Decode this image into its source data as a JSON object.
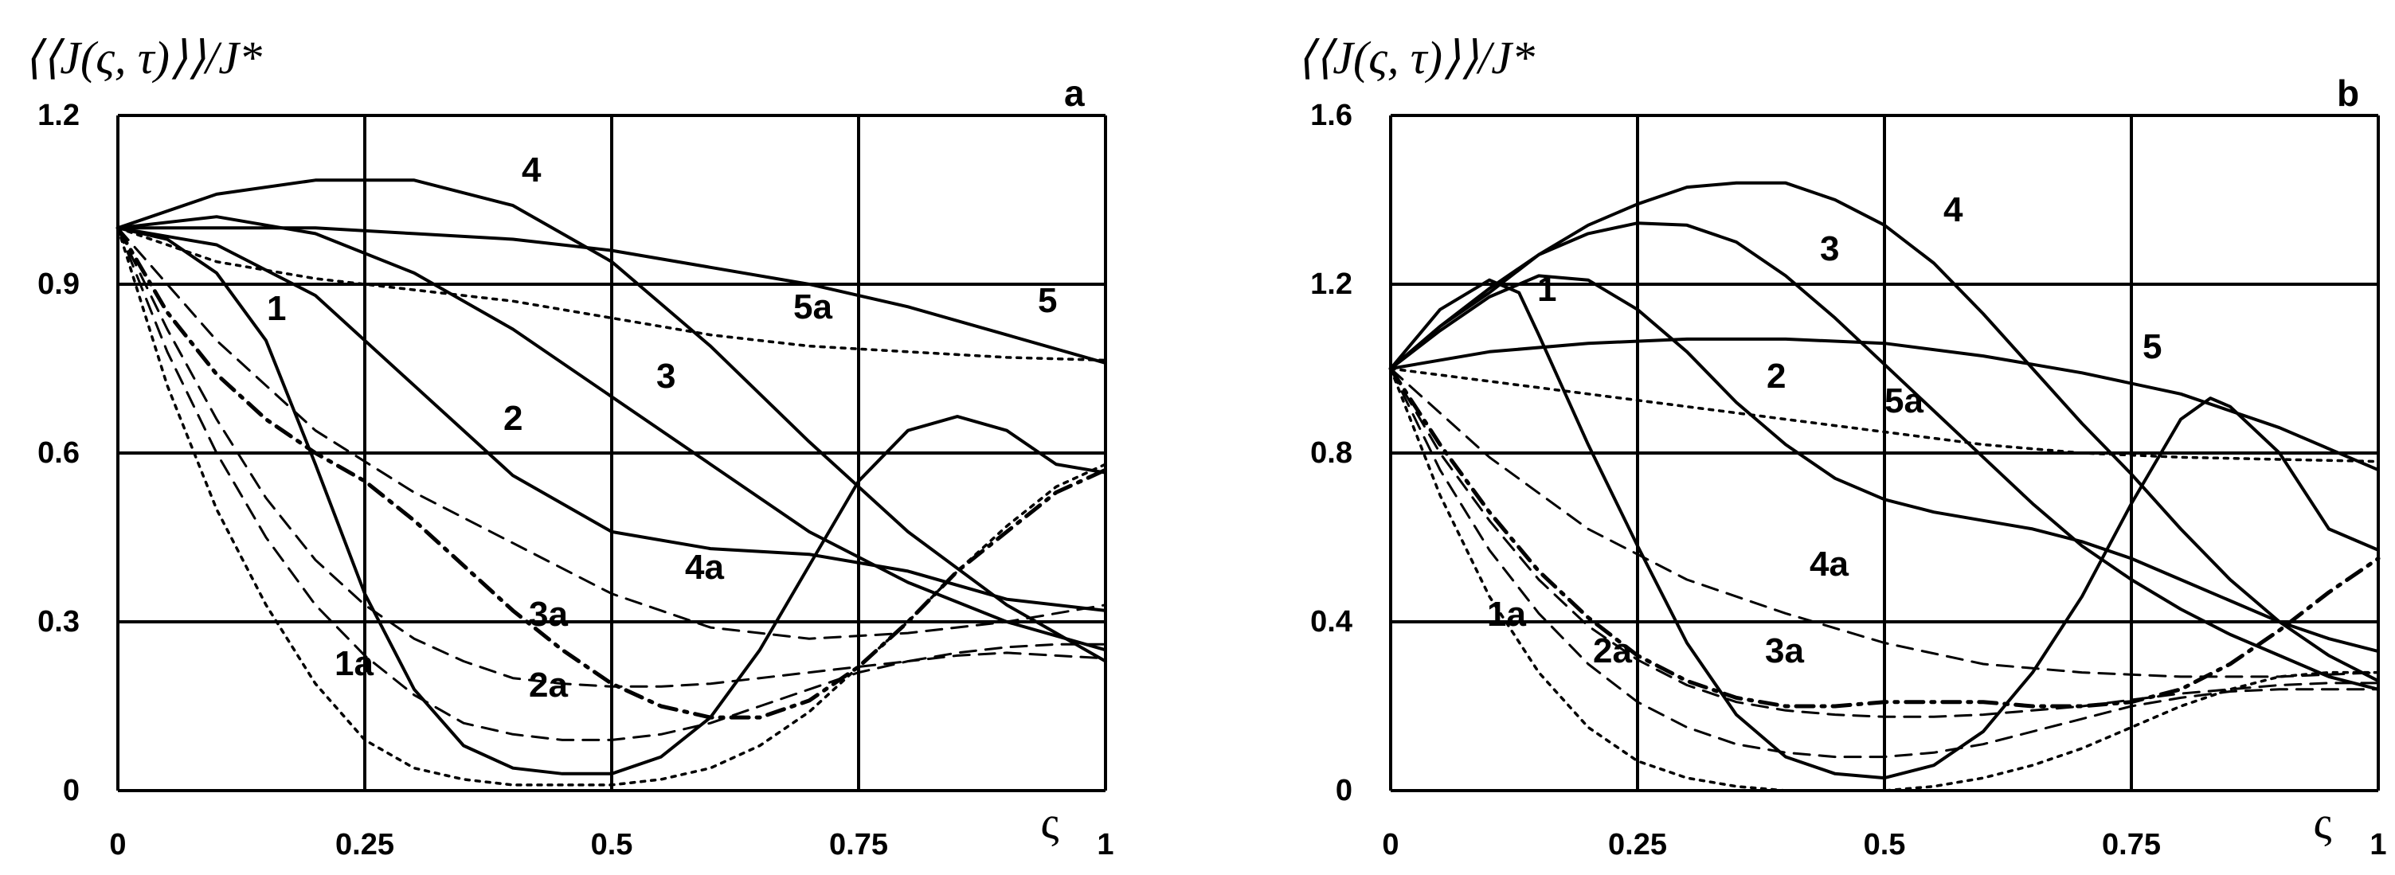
{
  "chart_data": [
    {
      "type": "line",
      "panel": "a",
      "ylabel": "⟨⟨J(ς, τ)⟩⟩/J*",
      "xlabel": "ς",
      "xlim": [
        0,
        1
      ],
      "ylim": [
        0,
        1.2
      ],
      "xticks": [
        "0",
        "0.25",
        "0.5",
        "0.75",
        "1"
      ],
      "yticks": [
        "0",
        "0.3",
        "0.6",
        "0.9",
        "1.2"
      ],
      "grid": true,
      "series": [
        {
          "name": "1",
          "style": "solid",
          "x": [
            0,
            0.05,
            0.1,
            0.15,
            0.2,
            0.25,
            0.3,
            0.35,
            0.4,
            0.45,
            0.5,
            0.55,
            0.6,
            0.65,
            0.7,
            0.75,
            0.8,
            0.85,
            0.9,
            0.95,
            1
          ],
          "y": [
            1.0,
            0.98,
            0.92,
            0.8,
            0.58,
            0.35,
            0.18,
            0.08,
            0.04,
            0.03,
            0.03,
            0.06,
            0.13,
            0.25,
            0.4,
            0.55,
            0.64,
            0.665,
            0.64,
            0.58,
            0.565
          ]
        },
        {
          "name": "2",
          "style": "solid",
          "x": [
            0,
            0.1,
            0.2,
            0.3,
            0.4,
            0.5,
            0.6,
            0.7,
            0.8,
            0.9,
            1
          ],
          "y": [
            1.0,
            0.97,
            0.88,
            0.72,
            0.56,
            0.46,
            0.43,
            0.42,
            0.39,
            0.34,
            0.32
          ]
        },
        {
          "name": "3",
          "style": "solid",
          "x": [
            0,
            0.1,
            0.2,
            0.3,
            0.4,
            0.5,
            0.6,
            0.7,
            0.8,
            0.9,
            1
          ],
          "y": [
            1.0,
            1.02,
            0.99,
            0.92,
            0.82,
            0.7,
            0.58,
            0.46,
            0.37,
            0.3,
            0.25
          ]
        },
        {
          "name": "4",
          "style": "solid",
          "x": [
            0,
            0.1,
            0.2,
            0.3,
            0.4,
            0.5,
            0.6,
            0.7,
            0.8,
            0.9,
            1
          ],
          "y": [
            1.0,
            1.06,
            1.085,
            1.085,
            1.04,
            0.94,
            0.79,
            0.62,
            0.46,
            0.33,
            0.23
          ]
        },
        {
          "name": "5",
          "style": "solid",
          "x": [
            0,
            0.1,
            0.2,
            0.3,
            0.4,
            0.5,
            0.6,
            0.7,
            0.8,
            0.9,
            1
          ],
          "y": [
            1.0,
            1.0,
            1.0,
            0.99,
            0.98,
            0.96,
            0.93,
            0.9,
            0.86,
            0.81,
            0.76
          ]
        },
        {
          "name": "1a",
          "style": "dotted",
          "x": [
            0,
            0.05,
            0.1,
            0.15,
            0.2,
            0.25,
            0.3,
            0.35,
            0.4,
            0.45,
            0.5,
            0.55,
            0.6,
            0.65,
            0.7,
            0.75,
            0.8,
            0.85,
            0.9,
            0.95,
            1
          ],
          "y": [
            1.0,
            0.72,
            0.5,
            0.33,
            0.19,
            0.09,
            0.04,
            0.02,
            0.01,
            0.01,
            0.01,
            0.02,
            0.04,
            0.08,
            0.14,
            0.22,
            0.3,
            0.39,
            0.47,
            0.54,
            0.58
          ]
        },
        {
          "name": "2a",
          "style": "dashed",
          "x": [
            0,
            0.05,
            0.1,
            0.15,
            0.2,
            0.25,
            0.3,
            0.35,
            0.4,
            0.45,
            0.5,
            0.55,
            0.6,
            0.65,
            0.7,
            0.75,
            0.8,
            0.85,
            0.9,
            0.95,
            1
          ],
          "y": [
            1.0,
            0.78,
            0.6,
            0.45,
            0.33,
            0.24,
            0.17,
            0.12,
            0.1,
            0.09,
            0.09,
            0.1,
            0.12,
            0.15,
            0.18,
            0.21,
            0.23,
            0.24,
            0.245,
            0.24,
            0.235
          ]
        },
        {
          "name": "3a",
          "style": "dashed",
          "x": [
            0,
            0.05,
            0.1,
            0.15,
            0.2,
            0.25,
            0.3,
            0.35,
            0.4,
            0.45,
            0.5,
            0.55,
            0.6,
            0.65,
            0.7,
            0.75,
            0.8,
            0.85,
            0.9,
            0.95,
            1
          ],
          "y": [
            1.0,
            0.82,
            0.66,
            0.52,
            0.41,
            0.33,
            0.27,
            0.23,
            0.2,
            0.19,
            0.185,
            0.185,
            0.19,
            0.2,
            0.21,
            0.22,
            0.23,
            0.245,
            0.255,
            0.26,
            0.26
          ]
        },
        {
          "name": "4a",
          "style": "dashed",
          "x": [
            0,
            0.1,
            0.2,
            0.3,
            0.4,
            0.5,
            0.6,
            0.7,
            0.8,
            0.9,
            1
          ],
          "y": [
            1.0,
            0.8,
            0.64,
            0.53,
            0.44,
            0.35,
            0.29,
            0.27,
            0.28,
            0.3,
            0.33
          ]
        },
        {
          "name": "5a",
          "style": "dotted",
          "x": [
            0,
            0.1,
            0.2,
            0.3,
            0.4,
            0.5,
            0.6,
            0.7,
            0.8,
            0.9,
            1
          ],
          "y": [
            1.0,
            0.94,
            0.91,
            0.89,
            0.87,
            0.84,
            0.81,
            0.79,
            0.78,
            0.77,
            0.765
          ]
        },
        {
          "name": "",
          "style": "dashdot",
          "x": [
            0,
            0.05,
            0.1,
            0.15,
            0.2,
            0.25,
            0.3,
            0.35,
            0.4,
            0.45,
            0.5,
            0.55,
            0.6,
            0.65,
            0.7,
            0.75,
            0.8,
            0.85,
            0.9,
            0.95,
            1
          ],
          "y": [
            1.0,
            0.85,
            0.74,
            0.66,
            0.6,
            0.55,
            0.48,
            0.4,
            0.32,
            0.25,
            0.19,
            0.15,
            0.13,
            0.13,
            0.16,
            0.22,
            0.3,
            0.39,
            0.46,
            0.53,
            0.57
          ]
        }
      ]
    },
    {
      "type": "line",
      "panel": "b",
      "ylabel": "⟨⟨J(ς, τ)⟩⟩/J*",
      "xlabel": "ς",
      "xlim": [
        0,
        1
      ],
      "ylim": [
        0,
        1.6
      ],
      "xticks": [
        "0",
        "0.25",
        "0.5",
        "0.75",
        "1"
      ],
      "yticks": [
        "0",
        "0.4",
        "0.8",
        "1.2",
        "1.6"
      ],
      "grid": true,
      "series": [
        {
          "name": "1",
          "style": "solid",
          "x": [
            0,
            0.05,
            0.1,
            0.13,
            0.15,
            0.2,
            0.25,
            0.3,
            0.35,
            0.4,
            0.45,
            0.5,
            0.55,
            0.6,
            0.65,
            0.7,
            0.75,
            0.8,
            0.83,
            0.85,
            0.9,
            0.95,
            1
          ],
          "y": [
            1.0,
            1.14,
            1.21,
            1.18,
            1.08,
            0.82,
            0.58,
            0.35,
            0.18,
            0.08,
            0.04,
            0.03,
            0.06,
            0.14,
            0.28,
            0.46,
            0.68,
            0.88,
            0.93,
            0.91,
            0.8,
            0.62,
            0.57
          ]
        },
        {
          "name": "2",
          "style": "solid",
          "x": [
            0,
            0.05,
            0.1,
            0.15,
            0.2,
            0.25,
            0.3,
            0.35,
            0.4,
            0.45,
            0.5,
            0.55,
            0.6,
            0.65,
            0.7,
            0.75,
            0.8,
            0.85,
            0.9,
            0.95,
            1
          ],
          "y": [
            1.0,
            1.09,
            1.17,
            1.22,
            1.21,
            1.14,
            1.04,
            0.92,
            0.82,
            0.74,
            0.69,
            0.66,
            0.64,
            0.62,
            0.59,
            0.55,
            0.5,
            0.45,
            0.4,
            0.36,
            0.33
          ]
        },
        {
          "name": "3",
          "style": "solid",
          "x": [
            0,
            0.05,
            0.1,
            0.15,
            0.2,
            0.25,
            0.3,
            0.35,
            0.4,
            0.45,
            0.5,
            0.55,
            0.6,
            0.65,
            0.7,
            0.75,
            0.8,
            0.85,
            0.9,
            0.95,
            1
          ],
          "y": [
            1.0,
            1.1,
            1.19,
            1.27,
            1.32,
            1.345,
            1.34,
            1.3,
            1.22,
            1.12,
            1.01,
            0.9,
            0.79,
            0.68,
            0.58,
            0.5,
            0.43,
            0.37,
            0.32,
            0.27,
            0.24
          ]
        },
        {
          "name": "4",
          "style": "solid",
          "x": [
            0,
            0.05,
            0.1,
            0.15,
            0.2,
            0.25,
            0.3,
            0.35,
            0.4,
            0.45,
            0.5,
            0.55,
            0.6,
            0.65,
            0.7,
            0.75,
            0.8,
            0.85,
            0.9,
            0.95,
            1
          ],
          "y": [
            1.0,
            1.1,
            1.18,
            1.27,
            1.34,
            1.39,
            1.43,
            1.44,
            1.44,
            1.4,
            1.34,
            1.25,
            1.13,
            1.0,
            0.87,
            0.75,
            0.62,
            0.5,
            0.4,
            0.32,
            0.26
          ]
        },
        {
          "name": "5",
          "style": "solid",
          "x": [
            0,
            0.1,
            0.2,
            0.3,
            0.4,
            0.5,
            0.6,
            0.7,
            0.8,
            0.9,
            1
          ],
          "y": [
            1.0,
            1.04,
            1.06,
            1.07,
            1.07,
            1.06,
            1.03,
            0.99,
            0.94,
            0.86,
            0.76
          ]
        },
        {
          "name": "1a",
          "style": "dotted",
          "x": [
            0,
            0.05,
            0.1,
            0.15,
            0.2,
            0.25,
            0.3,
            0.35,
            0.4,
            0.45,
            0.5,
            0.55,
            0.6,
            0.65,
            0.7,
            0.75,
            0.8,
            0.85,
            0.9,
            0.95,
            1
          ],
          "y": [
            1.0,
            0.7,
            0.46,
            0.28,
            0.15,
            0.07,
            0.03,
            0.01,
            0.0,
            0.0,
            0.0,
            0.01,
            0.03,
            0.06,
            0.1,
            0.15,
            0.2,
            0.24,
            0.27,
            0.28,
            0.28
          ]
        },
        {
          "name": "2a",
          "style": "dashed",
          "x": [
            0,
            0.05,
            0.1,
            0.15,
            0.2,
            0.25,
            0.3,
            0.35,
            0.4,
            0.45,
            0.5,
            0.55,
            0.6,
            0.65,
            0.7,
            0.75,
            0.8,
            0.85,
            0.9,
            0.95,
            1
          ],
          "y": [
            1.0,
            0.76,
            0.57,
            0.42,
            0.3,
            0.21,
            0.15,
            0.11,
            0.09,
            0.08,
            0.08,
            0.09,
            0.11,
            0.14,
            0.17,
            0.2,
            0.22,
            0.235,
            0.24,
            0.24,
            0.24
          ]
        },
        {
          "name": "3a",
          "style": "dashed",
          "x": [
            0,
            0.05,
            0.1,
            0.15,
            0.2,
            0.25,
            0.3,
            0.35,
            0.4,
            0.45,
            0.5,
            0.55,
            0.6,
            0.65,
            0.7,
            0.75,
            0.8,
            0.85,
            0.9,
            0.95,
            1
          ],
          "y": [
            1.0,
            0.8,
            0.64,
            0.5,
            0.39,
            0.31,
            0.25,
            0.21,
            0.19,
            0.18,
            0.175,
            0.175,
            0.18,
            0.19,
            0.2,
            0.215,
            0.23,
            0.24,
            0.25,
            0.255,
            0.255
          ]
        },
        {
          "name": "4a",
          "style": "dashed",
          "x": [
            0,
            0.1,
            0.2,
            0.3,
            0.4,
            0.5,
            0.6,
            0.7,
            0.8,
            0.9,
            1
          ],
          "y": [
            1.0,
            0.79,
            0.62,
            0.5,
            0.42,
            0.35,
            0.3,
            0.28,
            0.27,
            0.27,
            0.28
          ]
        },
        {
          "name": "5a",
          "style": "dotted",
          "x": [
            0,
            0.1,
            0.2,
            0.3,
            0.4,
            0.5,
            0.6,
            0.7,
            0.8,
            0.9,
            1
          ],
          "y": [
            1.0,
            0.97,
            0.94,
            0.91,
            0.88,
            0.85,
            0.82,
            0.8,
            0.79,
            0.785,
            0.78
          ]
        },
        {
          "name": "",
          "style": "dashdot",
          "x": [
            0,
            0.05,
            0.1,
            0.15,
            0.2,
            0.25,
            0.3,
            0.35,
            0.4,
            0.45,
            0.5,
            0.55,
            0.6,
            0.65,
            0.7,
            0.75,
            0.8,
            0.85,
            0.9,
            0.95,
            1
          ],
          "y": [
            1.0,
            0.82,
            0.66,
            0.52,
            0.41,
            0.32,
            0.26,
            0.22,
            0.2,
            0.2,
            0.21,
            0.21,
            0.21,
            0.2,
            0.2,
            0.21,
            0.24,
            0.3,
            0.38,
            0.47,
            0.55
          ]
        }
      ]
    }
  ]
}
